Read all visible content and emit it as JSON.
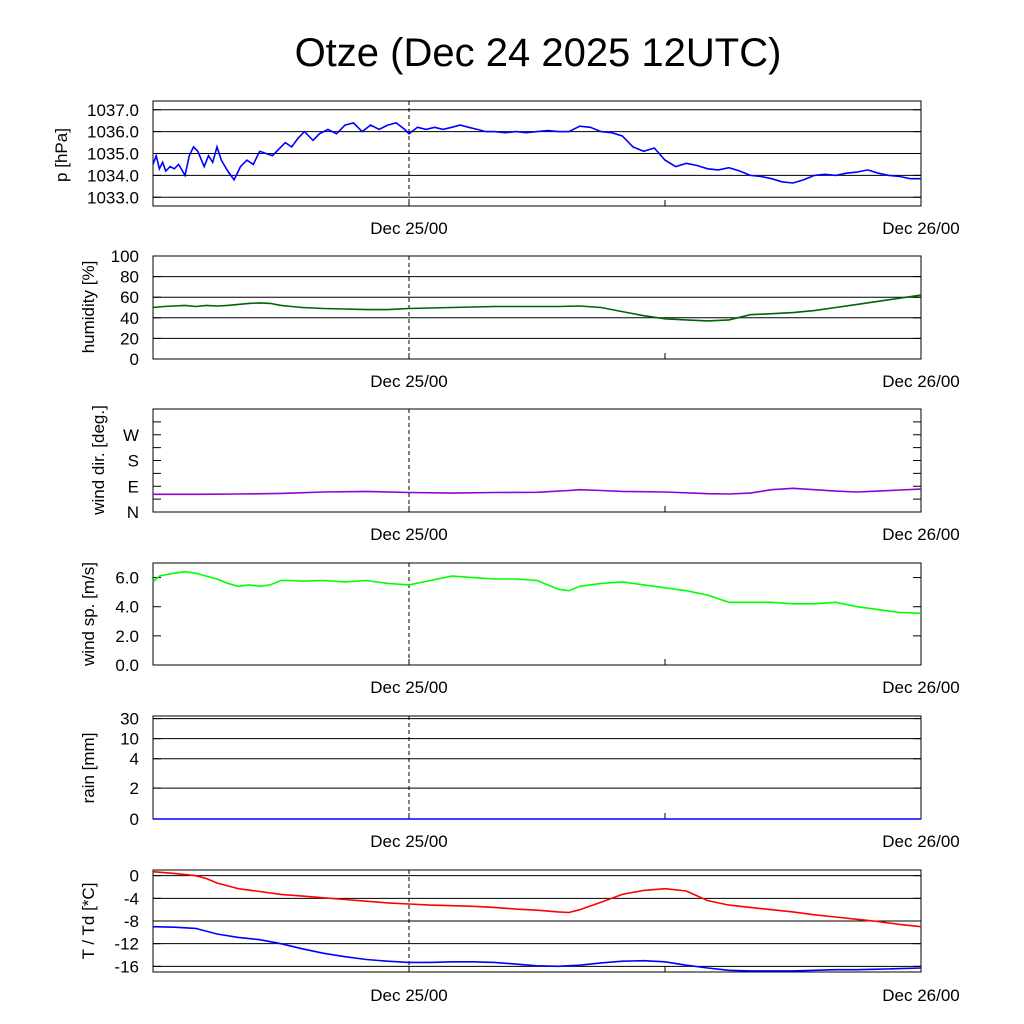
{
  "title": "Otze (Dec 24 2025 12UTC)",
  "x_ticks": [
    "Dec 25/00",
    "Dec 26/00"
  ],
  "x_domain_hours": [
    0,
    36
  ],
  "x_tick_hours": [
    12,
    36
  ],
  "x_grid_hours": [
    24
  ],
  "colors": {
    "pressure": "#0000ff",
    "humidity": "#006400",
    "wind_dir": "#9400d3",
    "wind_speed": "#00ff00",
    "temperature": "#ff0000",
    "dewpoint": "#0000ff"
  },
  "chart_data": [
    {
      "type": "line",
      "panel": "pressure",
      "ylabel": "p [hPa]",
      "ylim": [
        1032.6,
        1037.4
      ],
      "yticks": [
        {
          "v": 1033.0,
          "label": "1033.0"
        },
        {
          "v": 1034.0,
          "label": "1034.0"
        },
        {
          "v": 1035.0,
          "label": "1035.0"
        },
        {
          "v": 1036.0,
          "label": "1036.0"
        },
        {
          "v": 1037.0,
          "label": "1037.0"
        }
      ],
      "grid": true,
      "series": [
        {
          "color_key": "pressure",
          "x": [
            0,
            0.15,
            0.3,
            0.45,
            0.6,
            0.8,
            1.0,
            1.2,
            1.5,
            1.7,
            1.9,
            2.1,
            2.4,
            2.6,
            2.8,
            3.0,
            3.2,
            3.5,
            3.8,
            4.1,
            4.4,
            4.7,
            5.0,
            5.3,
            5.6,
            5.9,
            6.2,
            6.5,
            6.8,
            7.1,
            7.5,
            7.8,
            8.2,
            8.6,
            9.0,
            9.4,
            9.8,
            10.2,
            10.6,
            11.0,
            11.4,
            11.8,
            12.0,
            12.4,
            12.8,
            13.2,
            13.6,
            14.0,
            14.4,
            14.8,
            15.2,
            15.6,
            16.0,
            16.5,
            17.0,
            17.5,
            18.0,
            18.5,
            19.0,
            19.5,
            20.0,
            20.5,
            21.0,
            21.5,
            22.0,
            22.5,
            23.0,
            23.5,
            24.0,
            24.5,
            25.0,
            25.5,
            26.0,
            26.5,
            27.0,
            27.5,
            28.0,
            28.5,
            29.0,
            29.5,
            30.0,
            30.5,
            31.0,
            31.5,
            32.0,
            32.5,
            33.0,
            33.5,
            34.0,
            34.5,
            35.0,
            35.5,
            36.0
          ],
          "y": [
            1034.5,
            1034.9,
            1034.3,
            1034.6,
            1034.2,
            1034.4,
            1034.3,
            1034.5,
            1034.0,
            1034.9,
            1035.3,
            1035.1,
            1034.4,
            1034.9,
            1034.6,
            1035.3,
            1034.7,
            1034.2,
            1033.8,
            1034.4,
            1034.7,
            1034.5,
            1035.1,
            1035.0,
            1034.9,
            1035.2,
            1035.5,
            1035.3,
            1035.7,
            1036.0,
            1035.6,
            1035.9,
            1036.1,
            1035.9,
            1036.3,
            1036.4,
            1036.0,
            1036.3,
            1036.1,
            1036.3,
            1036.4,
            1036.1,
            1035.9,
            1036.2,
            1036.1,
            1036.2,
            1036.1,
            1036.2,
            1036.3,
            1036.2,
            1036.1,
            1036.0,
            1036.0,
            1035.95,
            1036.0,
            1035.95,
            1036.0,
            1036.05,
            1036.0,
            1036.0,
            1036.25,
            1036.2,
            1036.0,
            1035.95,
            1035.8,
            1035.3,
            1035.1,
            1035.25,
            1034.7,
            1034.4,
            1034.55,
            1034.45,
            1034.3,
            1034.25,
            1034.35,
            1034.2,
            1034.0,
            1033.95,
            1033.85,
            1033.7,
            1033.65,
            1033.8,
            1034.0,
            1034.05,
            1034.0,
            1034.1,
            1034.15,
            1034.25,
            1034.1,
            1034.0,
            1033.95,
            1033.85,
            1033.85
          ]
        }
      ]
    },
    {
      "type": "line",
      "panel": "humidity",
      "ylabel": "humidity [%]",
      "ylim": [
        0,
        100
      ],
      "yticks": [
        {
          "v": 0,
          "label": "0"
        },
        {
          "v": 20,
          "label": "20"
        },
        {
          "v": 40,
          "label": "40"
        },
        {
          "v": 60,
          "label": "60"
        },
        {
          "v": 80,
          "label": "80"
        },
        {
          "v": 100,
          "label": "100"
        }
      ],
      "grid": true,
      "series": [
        {
          "color_key": "humidity",
          "x": [
            0,
            0.5,
            1,
            1.5,
            2,
            2.5,
            3,
            3.5,
            4,
            4.5,
            5,
            5.5,
            6,
            6.5,
            7,
            8,
            9,
            10,
            11,
            12,
            13,
            14,
            15,
            16,
            17,
            18,
            19,
            20,
            21,
            22,
            23,
            24,
            25,
            26,
            27,
            28,
            29,
            30,
            31,
            32,
            33,
            34,
            35,
            36
          ],
          "y": [
            50,
            51,
            51.5,
            52,
            51,
            52,
            51.5,
            52,
            53,
            54,
            54.5,
            54,
            52,
            51,
            50,
            49,
            48.5,
            48,
            48,
            49,
            49.5,
            50,
            50.5,
            51,
            51,
            51,
            51,
            51.5,
            50,
            46,
            42,
            39,
            38,
            37,
            38,
            43,
            44,
            45,
            47,
            50,
            53,
            56,
            59,
            62
          ]
        }
      ]
    },
    {
      "type": "line",
      "panel": "wind_dir",
      "ylabel": "wind dir. [deg.]",
      "ylim": [
        0,
        360
      ],
      "yticks": [
        {
          "v": 0,
          "label": "N"
        },
        {
          "v": 90,
          "label": "E"
        },
        {
          "v": 180,
          "label": "S"
        },
        {
          "v": 270,
          "label": "W"
        }
      ],
      "extra_ticks": [
        45,
        135,
        225,
        315,
        360
      ],
      "grid": false,
      "series": [
        {
          "color_key": "wind_dir",
          "x": [
            0,
            2,
            4,
            6,
            8,
            10,
            12,
            14,
            16,
            18,
            19.5,
            20,
            21,
            22,
            24,
            26,
            27,
            28,
            29,
            30,
            31,
            32,
            33,
            34,
            35,
            36
          ],
          "y": [
            62,
            62,
            63,
            65,
            70,
            72,
            68,
            66,
            68,
            69,
            75,
            78,
            75,
            72,
            70,
            64,
            63,
            66,
            78,
            83,
            78,
            73,
            70,
            73,
            77,
            80
          ]
        }
      ]
    },
    {
      "type": "line",
      "panel": "wind_speed",
      "ylabel": "wind sp. [m/s]",
      "ylim": [
        0,
        7.0
      ],
      "yticks": [
        {
          "v": 0.0,
          "label": "0.0"
        },
        {
          "v": 2.0,
          "label": "2.0"
        },
        {
          "v": 4.0,
          "label": "4.0"
        },
        {
          "v": 6.0,
          "label": "6.0"
        }
      ],
      "grid": false,
      "series": [
        {
          "color_key": "wind_speed",
          "x": [
            0,
            0.3,
            0.6,
            1.0,
            1.5,
            2.0,
            2.5,
            3.0,
            3.5,
            4.0,
            4.5,
            5.0,
            5.5,
            6.0,
            6.5,
            7.0,
            8.0,
            9.0,
            10.0,
            11.0,
            12.0,
            13.0,
            14.0,
            15.0,
            16.0,
            17.0,
            18.0,
            19.0,
            19.5,
            20.0,
            21.0,
            22.0,
            23.0,
            24.0,
            25.0,
            26.0,
            27.0,
            28.0,
            29.0,
            30.0,
            31.0,
            32.0,
            33.0,
            34.0,
            35.0,
            36.0
          ],
          "y": [
            5.7,
            6.1,
            6.2,
            6.3,
            6.4,
            6.3,
            6.1,
            5.9,
            5.6,
            5.4,
            5.5,
            5.4,
            5.5,
            5.8,
            5.8,
            5.75,
            5.8,
            5.7,
            5.8,
            5.6,
            5.5,
            5.8,
            6.1,
            6.0,
            5.9,
            5.9,
            5.8,
            5.2,
            5.1,
            5.4,
            5.6,
            5.7,
            5.5,
            5.3,
            5.1,
            4.8,
            4.3,
            4.3,
            4.3,
            4.2,
            4.2,
            4.3,
            4.0,
            3.8,
            3.6,
            3.55
          ]
        }
      ]
    },
    {
      "type": "line",
      "panel": "rain",
      "ylabel": "rain [mm]",
      "ylim": [
        0,
        33
      ],
      "yticks": [
        {
          "v": 0,
          "label": "0"
        },
        {
          "v": 2,
          "label": "2"
        },
        {
          "v": 4,
          "label": "4"
        },
        {
          "v": 10,
          "label": "10"
        },
        {
          "v": 30,
          "label": "30"
        }
      ],
      "grid": true,
      "series": [
        {
          "color_key": "dewpoint",
          "x": [
            0,
            36
          ],
          "y": [
            0,
            0
          ]
        }
      ]
    },
    {
      "type": "line",
      "panel": "temperature",
      "ylabel": "T / Td [*C]",
      "ylim": [
        -17,
        1
      ],
      "yticks": [
        {
          "v": 0,
          "label": "0"
        },
        {
          "v": -4,
          "label": "-4"
        },
        {
          "v": -8,
          "label": "-8"
        },
        {
          "v": -12,
          "label": "-12"
        },
        {
          "v": -16,
          "label": "-16"
        }
      ],
      "grid": true,
      "series": [
        {
          "color_key": "temperature",
          "x": [
            0,
            1,
            2,
            2.5,
            3,
            3.5,
            4,
            5,
            6,
            7,
            8,
            9,
            10,
            11,
            12,
            13,
            14,
            15,
            16,
            17,
            18,
            19,
            19.5,
            20,
            21,
            22,
            23,
            24,
            25,
            26,
            27,
            28,
            29,
            30,
            31,
            32,
            33,
            34,
            35,
            36
          ],
          "y": [
            0.7,
            0.4,
            0,
            -0.5,
            -1.3,
            -1.8,
            -2.3,
            -2.8,
            -3.3,
            -3.6,
            -3.9,
            -4.2,
            -4.5,
            -4.8,
            -5.0,
            -5.2,
            -5.3,
            -5.4,
            -5.6,
            -5.9,
            -6.1,
            -6.4,
            -6.5,
            -6.0,
            -4.7,
            -3.3,
            -2.6,
            -2.3,
            -2.7,
            -4.4,
            -5.2,
            -5.6,
            -6.0,
            -6.4,
            -6.9,
            -7.3,
            -7.7,
            -8.1,
            -8.6,
            -9.0
          ]
        },
        {
          "color_key": "dewpoint",
          "x": [
            0,
            1,
            2,
            3,
            4,
            5,
            6,
            7,
            8,
            9,
            10,
            11,
            12,
            13,
            14,
            15,
            16,
            17,
            18,
            19,
            20,
            21,
            22,
            23,
            24,
            25,
            26,
            27,
            28,
            29,
            30,
            31,
            32,
            33,
            34,
            35,
            36
          ],
          "y": [
            -9.0,
            -9.1,
            -9.3,
            -10.3,
            -10.9,
            -11.3,
            -12.0,
            -12.9,
            -13.7,
            -14.3,
            -14.8,
            -15.1,
            -15.3,
            -15.3,
            -15.2,
            -15.2,
            -15.3,
            -15.6,
            -15.9,
            -16.0,
            -15.8,
            -15.4,
            -15.1,
            -15.0,
            -15.2,
            -15.8,
            -16.3,
            -16.7,
            -16.8,
            -16.8,
            -16.8,
            -16.7,
            -16.6,
            -16.6,
            -16.5,
            -16.4,
            -16.3
          ]
        }
      ]
    }
  ]
}
